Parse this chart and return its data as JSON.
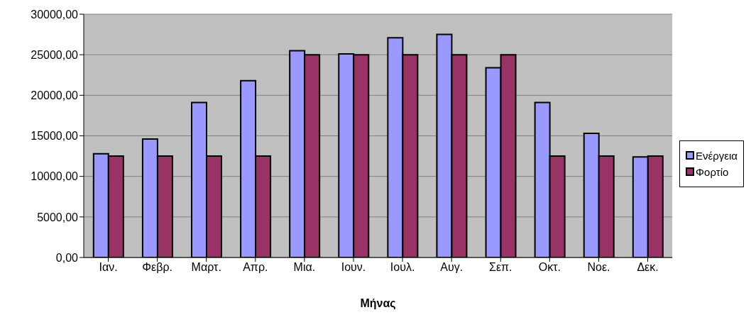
{
  "chart_data": {
    "type": "bar",
    "xlabel": "Μήνας",
    "categories": [
      "Ιαν.",
      "Φεβρ.",
      "Μαρτ.",
      "Απρ.",
      "Μια.",
      "Ιουν.",
      "Ιουλ.",
      "Αυγ.",
      "Σεπ.",
      "Οκτ.",
      "Νοε.",
      "Δεκ."
    ],
    "series": [
      {
        "name": "Ενέργεια",
        "color": "#9999ff",
        "values": [
          12800,
          14600,
          19100,
          21800,
          25500,
          25100,
          27100,
          27500,
          23400,
          19100,
          15300,
          12400
        ]
      },
      {
        "name": "Φορτίο",
        "color": "#993366",
        "values": [
          12500,
          12500,
          12500,
          12500,
          25000,
          25000,
          25000,
          25000,
          25000,
          12500,
          12500,
          12500
        ]
      }
    ],
    "ylim": [
      0,
      30000
    ],
    "yticks": [
      {
        "value": 0,
        "label": "0,00"
      },
      {
        "value": 5000,
        "label": "5000,00"
      },
      {
        "value": 10000,
        "label": "10000,00"
      },
      {
        "value": 15000,
        "label": "15000,00"
      },
      {
        "value": 20000,
        "label": "20000,00"
      },
      {
        "value": 25000,
        "label": "25000,00"
      },
      {
        "value": 30000,
        "label": "30000,00"
      }
    ],
    "grid": "y",
    "legend": "right"
  }
}
